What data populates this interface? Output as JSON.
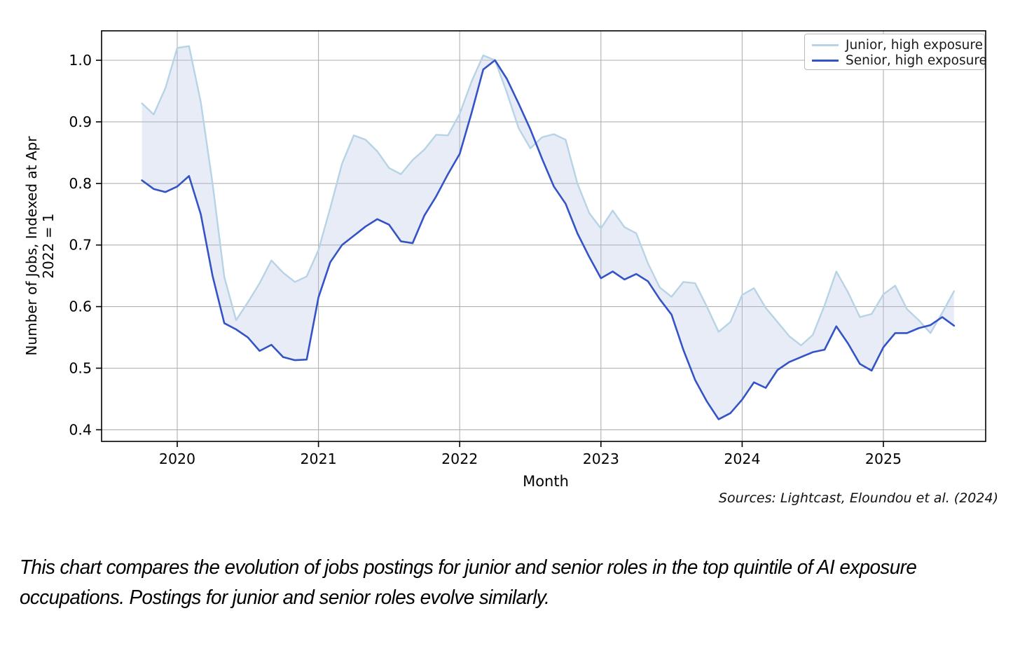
{
  "chart_data": {
    "type": "line",
    "xlabel": "Month",
    "ylabel": "Number of Jobs, Indexed at Apr 2022 = 1",
    "x_tick_labels": [
      "2020",
      "2021",
      "2022",
      "2023",
      "2024",
      "2025"
    ],
    "y_tick_labels": [
      "0.4",
      "0.5",
      "0.6",
      "0.7",
      "0.8",
      "0.9",
      "1.0"
    ],
    "y_ticks": [
      0.4,
      0.5,
      0.6,
      0.7,
      0.8,
      0.9,
      1.0
    ],
    "ylim": [
      0.381,
      1.048
    ],
    "grid": true,
    "legend_position": "upper right",
    "frequency": "monthly",
    "months": [
      "2019-10",
      "2019-11",
      "2019-12",
      "2020-01",
      "2020-02",
      "2020-03",
      "2020-04",
      "2020-05",
      "2020-06",
      "2020-07",
      "2020-08",
      "2020-09",
      "2020-10",
      "2020-11",
      "2020-12",
      "2021-01",
      "2021-02",
      "2021-03",
      "2021-04",
      "2021-05",
      "2021-06",
      "2021-07",
      "2021-08",
      "2021-09",
      "2021-10",
      "2021-11",
      "2021-12",
      "2022-01",
      "2022-02",
      "2022-03",
      "2022-04",
      "2022-05",
      "2022-06",
      "2022-07",
      "2022-08",
      "2022-09",
      "2022-10",
      "2022-11",
      "2022-12",
      "2023-01",
      "2023-02",
      "2023-03",
      "2023-04",
      "2023-05",
      "2023-06",
      "2023-07",
      "2023-08",
      "2023-09",
      "2023-10",
      "2023-11",
      "2023-12",
      "2024-01",
      "2024-02",
      "2024-03",
      "2024-04",
      "2024-05",
      "2024-06",
      "2024-07",
      "2024-08",
      "2024-09",
      "2024-10",
      "2024-11",
      "2024-12",
      "2025-01",
      "2025-02",
      "2025-03",
      "2025-04",
      "2025-05",
      "2025-06",
      "2025-07"
    ],
    "series": [
      {
        "name": "Junior, high exposure",
        "color": "#b7d3e6",
        "values": [
          0.93,
          0.912,
          0.955,
          1.02,
          1.023,
          0.932,
          0.8,
          0.648,
          0.578,
          0.607,
          0.638,
          0.675,
          0.655,
          0.64,
          0.649,
          0.692,
          0.76,
          0.832,
          0.878,
          0.871,
          0.852,
          0.825,
          0.815,
          0.838,
          0.855,
          0.879,
          0.878,
          0.913,
          0.965,
          1.008,
          1.0,
          0.948,
          0.89,
          0.857,
          0.875,
          0.88,
          0.871,
          0.8,
          0.752,
          0.727,
          0.756,
          0.729,
          0.719,
          0.67,
          0.631,
          0.616,
          0.64,
          0.638,
          0.6,
          0.559,
          0.575,
          0.619,
          0.63,
          0.598,
          0.575,
          0.552,
          0.537,
          0.554,
          0.602,
          0.657,
          0.623,
          0.583,
          0.588,
          0.62,
          0.634,
          0.596,
          0.578,
          0.557,
          0.59,
          0.625
        ]
      },
      {
        "name": "Senior, high exposure",
        "color": "#3353c6",
        "values": [
          0.805,
          0.791,
          0.786,
          0.795,
          0.812,
          0.75,
          0.65,
          0.573,
          0.563,
          0.55,
          0.528,
          0.538,
          0.518,
          0.513,
          0.514,
          0.615,
          0.672,
          0.7,
          0.715,
          0.73,
          0.742,
          0.733,
          0.706,
          0.703,
          0.748,
          0.779,
          0.815,
          0.848,
          0.914,
          0.985,
          1.0,
          0.97,
          0.93,
          0.888,
          0.84,
          0.795,
          0.767,
          0.719,
          0.681,
          0.646,
          0.657,
          0.644,
          0.653,
          0.641,
          0.612,
          0.587,
          0.53,
          0.481,
          0.446,
          0.417,
          0.427,
          0.449,
          0.477,
          0.468,
          0.497,
          0.51,
          0.518,
          0.526,
          0.53,
          0.568,
          0.54,
          0.507,
          0.496,
          0.534,
          0.557,
          0.557,
          0.565,
          0.57,
          0.583,
          0.569
        ]
      }
    ],
    "band_fill": "rgba(178,193,224,0.30)",
    "grid_color": "#b0b0b0",
    "spine_color": "#000000"
  },
  "legend": {
    "items": [
      {
        "label": "Junior, high exposure",
        "color": "#b7d3e6"
      },
      {
        "label": "Senior, high exposure",
        "color": "#3353c6"
      }
    ]
  },
  "labels": {
    "y_axis": "Number of Jobs, Indexed at Apr 2022 = 1",
    "x_axis": "Month"
  },
  "sources": "Sources: Lightcast, Eloundou et al. (2024)",
  "caption": "This chart compares the evolution of jobs postings for junior and senior roles in the top quintile of AI exposure occupations. Postings for junior and senior roles evolve similarly."
}
